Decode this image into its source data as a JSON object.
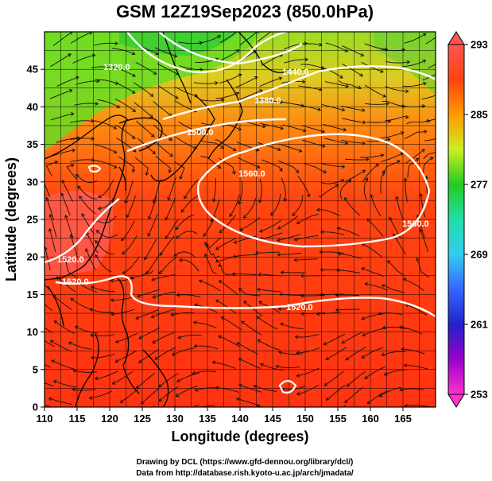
{
  "title": "GSM 12Z19Sep2023 (850.0hPa)",
  "axes": {
    "xlabel": "Longitude (degrees)",
    "ylabel": "Latitude  (degrees)",
    "xlim": [
      110,
      170
    ],
    "ylim": [
      0,
      50
    ],
    "xticks": [
      "110",
      "115",
      "120",
      "125",
      "130",
      "135",
      "140",
      "145",
      "150",
      "155",
      "160",
      "165"
    ],
    "yticks": [
      "0",
      "5",
      "10",
      "15",
      "20",
      "25",
      "30",
      "35",
      "40",
      "45"
    ]
  },
  "colorbar": {
    "ticks": [
      "293",
      "285",
      "277",
      "269",
      "261",
      "253"
    ],
    "range": [
      253,
      293
    ],
    "stops": [
      {
        "value": 253,
        "color": "#ff33cc"
      },
      {
        "value": 257,
        "color": "#9900cc"
      },
      {
        "value": 261,
        "color": "#2222cc"
      },
      {
        "value": 265,
        "color": "#3366ff"
      },
      {
        "value": 269,
        "color": "#33ccee"
      },
      {
        "value": 273,
        "color": "#22ddaa"
      },
      {
        "value": 277,
        "color": "#22cc22"
      },
      {
        "value": 281,
        "color": "#ccee22"
      },
      {
        "value": 285,
        "color": "#ff9900"
      },
      {
        "value": 289,
        "color": "#ff4411"
      },
      {
        "value": 293,
        "color": "#ff5555"
      }
    ]
  },
  "contour_labels": [
    "1320.0",
    "1380.0",
    "1440.0",
    "1500.0",
    "1560.0",
    "1560.0",
    "1520.0",
    "1520.0",
    "1520.0"
  ],
  "credits": {
    "line1": "Drawing by DCL (https://www.gfd-dennou.org/library/dcl/)",
    "line2": "Data from http://database.rish.kyoto-u.ac.jp/arch/jmadata/"
  },
  "colors": {
    "contour": "#ffffff",
    "coastline": "#000000",
    "grid": "#000000",
    "streamline": "#111111"
  }
}
